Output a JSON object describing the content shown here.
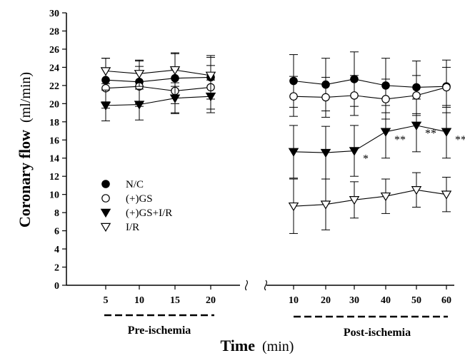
{
  "chart_data": {
    "type": "line",
    "ylabel": "Coronary flow",
    "ylabel_unit": "(ml/min)",
    "xlabel": "Time",
    "xlabel_unit": "(min)",
    "ylim": [
      0,
      30
    ],
    "yticks": [
      0,
      2,
      4,
      6,
      8,
      10,
      12,
      14,
      16,
      18,
      20,
      22,
      24,
      26,
      28,
      30
    ],
    "grid": false,
    "legend_position": "left-middle",
    "segments": [
      {
        "name": "Pre-ischemia",
        "x": [
          "5",
          "10",
          "15",
          "20"
        ]
      },
      {
        "name": "Post-ischemia",
        "x": [
          "10",
          "20",
          "30",
          "40",
          "50",
          "60"
        ]
      }
    ],
    "series": [
      {
        "name": "N/C",
        "marker": "filled-circle",
        "pre": {
          "values": [
            22.6,
            22.4,
            22.8,
            22.9
          ],
          "err": [
            2.4,
            2.4,
            2.8,
            2.4
          ]
        },
        "post": {
          "values": [
            22.5,
            22.1,
            22.7,
            22.0,
            21.8,
            21.9
          ],
          "err": [
            2.9,
            2.9,
            3.0,
            3.0,
            2.9,
            2.9
          ]
        }
      },
      {
        "name": "(+)GS",
        "marker": "open-circle",
        "pre": {
          "values": [
            21.7,
            21.9,
            21.4,
            21.8
          ],
          "err": [
            2.2,
            2.2,
            2.4,
            2.4
          ]
        },
        "post": {
          "values": [
            20.8,
            20.7,
            20.9,
            20.5,
            20.9,
            21.8
          ],
          "err": [
            2.2,
            2.2,
            2.2,
            2.2,
            2.2,
            2.2
          ]
        }
      },
      {
        "name": "(+)GS+I/R",
        "marker": "filled-triangle-down",
        "pre": {
          "values": [
            19.8,
            19.9,
            20.6,
            20.8
          ],
          "err": [
            1.7,
            1.7,
            1.7,
            1.8
          ]
        },
        "post": {
          "values": [
            14.7,
            14.6,
            14.8,
            16.9,
            17.6,
            16.9
          ],
          "err": [
            2.9,
            2.9,
            2.8,
            2.9,
            2.9,
            2.9
          ]
        }
      },
      {
        "name": "I/R",
        "marker": "open-triangle-down",
        "pre": {
          "values": [
            23.6,
            23.3,
            23.7,
            23.1
          ],
          "err": [
            1.4,
            1.4,
            1.8,
            2.0
          ]
        },
        "post": {
          "values": [
            8.7,
            8.9,
            9.4,
            9.8,
            10.5,
            10.0
          ],
          "err": [
            3.0,
            2.8,
            2.0,
            1.9,
            1.9,
            1.9
          ]
        }
      }
    ],
    "annotations": [
      {
        "text": "*",
        "segment": "post",
        "index": 2,
        "value": 14.8
      },
      {
        "text": "**",
        "segment": "post",
        "index": 3,
        "value": 16.9
      },
      {
        "text": "**",
        "segment": "post",
        "index": 4,
        "value": 17.6
      },
      {
        "text": "**",
        "segment": "post",
        "index": 5,
        "value": 16.9
      }
    ]
  }
}
